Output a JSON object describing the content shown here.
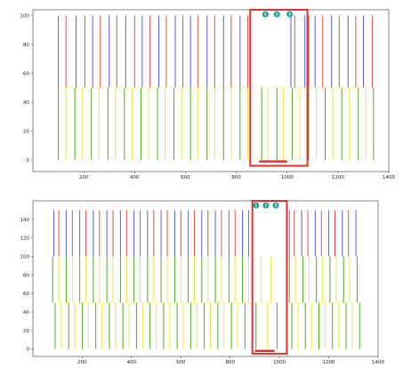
{
  "colors": {
    "blue": "#5b5bea",
    "red": "#e05050",
    "green": "#4caf1a",
    "yellow": "#e8e84a",
    "highlight": "#e03030",
    "marker": "#1f9a94",
    "axis": "#333333"
  },
  "chart_data": [
    {
      "type": "event-raster",
      "xlim": [
        0,
        1400
      ],
      "ylim": [
        -8,
        104
      ],
      "xticks": [
        "200",
        "400",
        "600",
        "800",
        "1000",
        "1200",
        "1400"
      ],
      "yticks": [
        "0",
        "20",
        "40",
        "60",
        "80",
        "100"
      ],
      "upper_band": {
        "y": [
          50,
          100
        ]
      },
      "lower_band": {
        "y": [
          0,
          50
        ]
      },
      "upper_events": [
        {
          "x": 100,
          "c": "blue"
        },
        {
          "x": 130,
          "c": "red"
        },
        {
          "x": 170,
          "c": "blue"
        },
        {
          "x": 205,
          "c": "red"
        },
        {
          "x": 235,
          "c": "blue"
        },
        {
          "x": 265,
          "c": "red"
        },
        {
          "x": 300,
          "c": "blue"
        },
        {
          "x": 330,
          "c": "red"
        },
        {
          "x": 365,
          "c": "blue"
        },
        {
          "x": 400,
          "c": "red"
        },
        {
          "x": 430,
          "c": "blue"
        },
        {
          "x": 460,
          "c": "red"
        },
        {
          "x": 495,
          "c": "blue"
        },
        {
          "x": 525,
          "c": "red"
        },
        {
          "x": 560,
          "c": "blue"
        },
        {
          "x": 590,
          "c": "red"
        },
        {
          "x": 620,
          "c": "blue"
        },
        {
          "x": 650,
          "c": "red"
        },
        {
          "x": 685,
          "c": "blue"
        },
        {
          "x": 715,
          "c": "red"
        },
        {
          "x": 750,
          "c": "blue"
        },
        {
          "x": 780,
          "c": "red"
        },
        {
          "x": 815,
          "c": "blue"
        },
        {
          "x": 845,
          "c": "red"
        },
        {
          "x": 1015,
          "c": "blue"
        },
        {
          "x": 1030,
          "c": "red"
        },
        {
          "x": 1070,
          "c": "blue"
        },
        {
          "x": 1085,
          "c": "red"
        },
        {
          "x": 1110,
          "c": "blue"
        },
        {
          "x": 1140,
          "c": "red"
        },
        {
          "x": 1175,
          "c": "blue"
        },
        {
          "x": 1205,
          "c": "red"
        },
        {
          "x": 1240,
          "c": "blue"
        },
        {
          "x": 1270,
          "c": "red"
        },
        {
          "x": 1300,
          "c": "blue"
        },
        {
          "x": 1335,
          "c": "red"
        }
      ],
      "lower_events": [
        {
          "x": 100,
          "c": "green"
        },
        {
          "x": 130,
          "c": "yellow"
        },
        {
          "x": 165,
          "c": "green"
        },
        {
          "x": 195,
          "c": "yellow"
        },
        {
          "x": 230,
          "c": "green"
        },
        {
          "x": 260,
          "c": "yellow"
        },
        {
          "x": 295,
          "c": "green"
        },
        {
          "x": 325,
          "c": "yellow"
        },
        {
          "x": 360,
          "c": "green"
        },
        {
          "x": 390,
          "c": "yellow"
        },
        {
          "x": 425,
          "c": "green"
        },
        {
          "x": 455,
          "c": "yellow"
        },
        {
          "x": 490,
          "c": "green"
        },
        {
          "x": 520,
          "c": "yellow"
        },
        {
          "x": 555,
          "c": "green"
        },
        {
          "x": 585,
          "c": "yellow"
        },
        {
          "x": 620,
          "c": "green"
        },
        {
          "x": 650,
          "c": "yellow"
        },
        {
          "x": 685,
          "c": "green"
        },
        {
          "x": 715,
          "c": "yellow"
        },
        {
          "x": 750,
          "c": "green"
        },
        {
          "x": 780,
          "c": "yellow"
        },
        {
          "x": 815,
          "c": "green"
        },
        {
          "x": 845,
          "c": "yellow"
        },
        {
          "x": 900,
          "c": "green"
        },
        {
          "x": 925,
          "c": "yellow"
        },
        {
          "x": 960,
          "c": "green"
        },
        {
          "x": 985,
          "c": "yellow"
        },
        {
          "x": 1020,
          "c": "green"
        },
        {
          "x": 1050,
          "c": "yellow"
        },
        {
          "x": 1085,
          "c": "green"
        },
        {
          "x": 1115,
          "c": "yellow"
        },
        {
          "x": 1150,
          "c": "green"
        },
        {
          "x": 1180,
          "c": "yellow"
        },
        {
          "x": 1215,
          "c": "green"
        },
        {
          "x": 1245,
          "c": "yellow"
        },
        {
          "x": 1280,
          "c": "green"
        },
        {
          "x": 1310,
          "c": "yellow"
        },
        {
          "x": 1340,
          "c": "green"
        }
      ],
      "highlight_box": {
        "x": [
          855,
          1080
        ],
        "y": [
          -4,
          104
        ]
      },
      "highlight_bar": {
        "x": [
          890,
          1000
        ],
        "y": -1
      },
      "markers": [
        {
          "x": 915,
          "label": "1"
        },
        {
          "x": 960,
          "label": "2"
        },
        {
          "x": 1010,
          "label": "3"
        }
      ]
    },
    {
      "type": "event-raster",
      "xlim": [
        0,
        1400
      ],
      "ylim": [
        -8,
        160
      ],
      "xticks": [
        "200",
        "400",
        "600",
        "800",
        "1000",
        "1200",
        "1400"
      ],
      "yticks": [
        "0",
        "20",
        "40",
        "60",
        "80",
        "100",
        "120",
        "140"
      ],
      "upper_band": {
        "y": [
          100,
          150
        ]
      },
      "middle_band": {
        "y": [
          50,
          100
        ]
      },
      "lower_band": {
        "y": [
          0,
          50
        ]
      },
      "upper_events": [
        {
          "x": 85,
          "c": "blue"
        },
        {
          "x": 105,
          "c": "red"
        },
        {
          "x": 135,
          "c": "blue"
        },
        {
          "x": 160,
          "c": "red"
        },
        {
          "x": 190,
          "c": "blue"
        },
        {
          "x": 215,
          "c": "red"
        },
        {
          "x": 245,
          "c": "blue"
        },
        {
          "x": 270,
          "c": "red"
        },
        {
          "x": 300,
          "c": "blue"
        },
        {
          "x": 325,
          "c": "red"
        },
        {
          "x": 355,
          "c": "blue"
        },
        {
          "x": 380,
          "c": "red"
        },
        {
          "x": 410,
          "c": "blue"
        },
        {
          "x": 435,
          "c": "red"
        },
        {
          "x": 465,
          "c": "blue"
        },
        {
          "x": 490,
          "c": "red"
        },
        {
          "x": 520,
          "c": "blue"
        },
        {
          "x": 545,
          "c": "red"
        },
        {
          "x": 575,
          "c": "blue"
        },
        {
          "x": 600,
          "c": "red"
        },
        {
          "x": 630,
          "c": "blue"
        },
        {
          "x": 655,
          "c": "red"
        },
        {
          "x": 685,
          "c": "blue"
        },
        {
          "x": 710,
          "c": "red"
        },
        {
          "x": 740,
          "c": "blue"
        },
        {
          "x": 765,
          "c": "red"
        },
        {
          "x": 795,
          "c": "blue"
        },
        {
          "x": 820,
          "c": "red"
        },
        {
          "x": 850,
          "c": "blue"
        },
        {
          "x": 875,
          "c": "red"
        },
        {
          "x": 1040,
          "c": "blue"
        },
        {
          "x": 1060,
          "c": "red"
        },
        {
          "x": 1090,
          "c": "blue"
        },
        {
          "x": 1115,
          "c": "red"
        },
        {
          "x": 1145,
          "c": "blue"
        },
        {
          "x": 1170,
          "c": "red"
        },
        {
          "x": 1200,
          "c": "blue"
        },
        {
          "x": 1225,
          "c": "red"
        },
        {
          "x": 1255,
          "c": "blue"
        },
        {
          "x": 1280,
          "c": "red"
        },
        {
          "x": 1310,
          "c": "blue"
        }
      ],
      "middle_events": [
        {
          "x": 80,
          "c": "green"
        },
        {
          "x": 105,
          "c": "yellow"
        },
        {
          "x": 135,
          "c": "green"
        },
        {
          "x": 160,
          "c": "yellow"
        },
        {
          "x": 190,
          "c": "green"
        },
        {
          "x": 215,
          "c": "yellow"
        },
        {
          "x": 245,
          "c": "green"
        },
        {
          "x": 270,
          "c": "yellow"
        },
        {
          "x": 300,
          "c": "green"
        },
        {
          "x": 325,
          "c": "yellow"
        },
        {
          "x": 355,
          "c": "green"
        },
        {
          "x": 380,
          "c": "yellow"
        },
        {
          "x": 410,
          "c": "green"
        },
        {
          "x": 435,
          "c": "yellow"
        },
        {
          "x": 465,
          "c": "green"
        },
        {
          "x": 490,
          "c": "yellow"
        },
        {
          "x": 520,
          "c": "green"
        },
        {
          "x": 545,
          "c": "yellow"
        },
        {
          "x": 575,
          "c": "green"
        },
        {
          "x": 600,
          "c": "yellow"
        },
        {
          "x": 630,
          "c": "green"
        },
        {
          "x": 655,
          "c": "yellow"
        },
        {
          "x": 685,
          "c": "green"
        },
        {
          "x": 710,
          "c": "yellow"
        },
        {
          "x": 740,
          "c": "green"
        },
        {
          "x": 765,
          "c": "yellow"
        },
        {
          "x": 795,
          "c": "green"
        },
        {
          "x": 820,
          "c": "yellow"
        },
        {
          "x": 850,
          "c": "green"
        },
        {
          "x": 875,
          "c": "yellow"
        },
        {
          "x": 925,
          "c": "yellow"
        },
        {
          "x": 965,
          "c": "yellow"
        },
        {
          "x": 1040,
          "c": "green"
        },
        {
          "x": 1065,
          "c": "yellow"
        },
        {
          "x": 1095,
          "c": "green"
        },
        {
          "x": 1120,
          "c": "yellow"
        },
        {
          "x": 1150,
          "c": "green"
        },
        {
          "x": 1175,
          "c": "yellow"
        },
        {
          "x": 1205,
          "c": "green"
        },
        {
          "x": 1230,
          "c": "yellow"
        },
        {
          "x": 1260,
          "c": "green"
        },
        {
          "x": 1285,
          "c": "yellow"
        },
        {
          "x": 1315,
          "c": "green"
        }
      ],
      "lower_events": [
        {
          "x": 90,
          "c": "green"
        },
        {
          "x": 115,
          "c": "yellow"
        },
        {
          "x": 145,
          "c": "green"
        },
        {
          "x": 170,
          "c": "yellow"
        },
        {
          "x": 200,
          "c": "green"
        },
        {
          "x": 225,
          "c": "yellow"
        },
        {
          "x": 255,
          "c": "green"
        },
        {
          "x": 280,
          "c": "yellow"
        },
        {
          "x": 310,
          "c": "green"
        },
        {
          "x": 335,
          "c": "yellow"
        },
        {
          "x": 365,
          "c": "green"
        },
        {
          "x": 390,
          "c": "yellow"
        },
        {
          "x": 420,
          "c": "green"
        },
        {
          "x": 445,
          "c": "yellow"
        },
        {
          "x": 475,
          "c": "green"
        },
        {
          "x": 500,
          "c": "yellow"
        },
        {
          "x": 530,
          "c": "green"
        },
        {
          "x": 555,
          "c": "yellow"
        },
        {
          "x": 585,
          "c": "green"
        },
        {
          "x": 610,
          "c": "yellow"
        },
        {
          "x": 640,
          "c": "green"
        },
        {
          "x": 665,
          "c": "yellow"
        },
        {
          "x": 695,
          "c": "green"
        },
        {
          "x": 720,
          "c": "yellow"
        },
        {
          "x": 750,
          "c": "green"
        },
        {
          "x": 775,
          "c": "yellow"
        },
        {
          "x": 805,
          "c": "green"
        },
        {
          "x": 830,
          "c": "yellow"
        },
        {
          "x": 860,
          "c": "green"
        },
        {
          "x": 905,
          "c": "green"
        },
        {
          "x": 950,
          "c": "yellow"
        },
        {
          "x": 990,
          "c": "green"
        },
        {
          "x": 1050,
          "c": "green"
        },
        {
          "x": 1075,
          "c": "yellow"
        },
        {
          "x": 1105,
          "c": "green"
        },
        {
          "x": 1130,
          "c": "yellow"
        },
        {
          "x": 1160,
          "c": "green"
        },
        {
          "x": 1185,
          "c": "yellow"
        },
        {
          "x": 1215,
          "c": "green"
        },
        {
          "x": 1240,
          "c": "yellow"
        },
        {
          "x": 1270,
          "c": "green"
        },
        {
          "x": 1295,
          "c": "yellow"
        },
        {
          "x": 1325,
          "c": "green"
        }
      ],
      "highlight_box": {
        "x": [
          890,
          1030
        ],
        "y": [
          -5,
          160
        ]
      },
      "highlight_bar": {
        "x": [
          900,
          980
        ],
        "y": -2
      },
      "markers": [
        {
          "x": 905,
          "label": "1"
        },
        {
          "x": 945,
          "label": "2"
        },
        {
          "x": 985,
          "label": "3"
        }
      ]
    }
  ]
}
